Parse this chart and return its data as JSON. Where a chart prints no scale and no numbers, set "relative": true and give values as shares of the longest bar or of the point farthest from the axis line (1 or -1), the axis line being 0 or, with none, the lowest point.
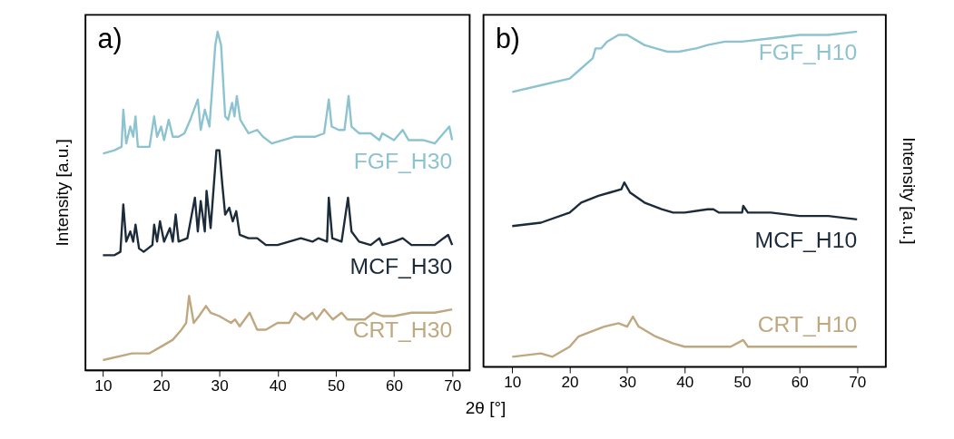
{
  "chart_data": [
    {
      "type": "line",
      "title": "a)",
      "xlabel": "2θ [°]",
      "ylabel": "Intensity [a.u.]",
      "relative": true,
      "xlim": [
        7,
        73
      ],
      "xticks": [
        10,
        20,
        30,
        40,
        50,
        60,
        70
      ],
      "series": [
        {
          "name": "FGF_H30",
          "color": "#8dc3d0",
          "x": [
            10,
            12,
            13.2,
            13.5,
            14,
            14.7,
            15.2,
            15.6,
            16,
            17,
            18,
            18.8,
            19.3,
            20,
            20.5,
            21.3,
            22,
            23,
            24,
            25,
            26.3,
            26.8,
            27.5,
            28.3,
            29.3,
            29.7,
            30.3,
            31,
            31.5,
            32.2,
            32.6,
            33,
            33.6,
            35,
            36.5,
            37.5,
            39,
            41,
            43,
            45,
            46.5,
            48,
            48.8,
            49.3,
            50.5,
            51.5,
            52.2,
            52.7,
            54,
            56,
            57.5,
            58,
            60,
            61.5,
            62.5,
            65,
            67,
            68.5,
            69.5,
            70
          ],
          "values": [
            0.64,
            0.65,
            0.66,
            0.77,
            0.67,
            0.72,
            0.69,
            0.75,
            0.66,
            0.66,
            0.66,
            0.75,
            0.69,
            0.72,
            0.68,
            0.74,
            0.69,
            0.69,
            0.7,
            0.74,
            0.8,
            0.71,
            0.77,
            0.72,
            0.96,
            1.0,
            0.96,
            0.75,
            0.74,
            0.79,
            0.75,
            0.81,
            0.74,
            0.7,
            0.71,
            0.69,
            0.67,
            0.68,
            0.69,
            0.69,
            0.69,
            0.7,
            0.8,
            0.72,
            0.71,
            0.71,
            0.81,
            0.72,
            0.7,
            0.7,
            0.68,
            0.7,
            0.68,
            0.71,
            0.68,
            0.68,
            0.67,
            0.7,
            0.72,
            0.68
          ]
        },
        {
          "name": "MCF_H30",
          "color": "#1c2b3a",
          "x": [
            10,
            12,
            13,
            13.5,
            14,
            14.7,
            15.2,
            15.6,
            16.2,
            17,
            18.5,
            18.8,
            19.3,
            19.8,
            20.5,
            21.5,
            22,
            22.5,
            23,
            24.5,
            25.8,
            26.3,
            26.8,
            27.5,
            27.8,
            28.5,
            29.5,
            30,
            30.5,
            31,
            31.7,
            32.3,
            32.9,
            33.5,
            35,
            36.5,
            38,
            40,
            42,
            44,
            46,
            47,
            48.5,
            48.8,
            49.4,
            51,
            52.1,
            52.7,
            54,
            56,
            57.5,
            58,
            60,
            61.5,
            63,
            65,
            67,
            68.5,
            69.3,
            70
          ],
          "values": [
            0.34,
            0.34,
            0.35,
            0.49,
            0.38,
            0.41,
            0.38,
            0.43,
            0.36,
            0.35,
            0.37,
            0.43,
            0.38,
            0.44,
            0.38,
            0.42,
            0.38,
            0.46,
            0.38,
            0.39,
            0.51,
            0.41,
            0.5,
            0.41,
            0.53,
            0.42,
            0.65,
            0.65,
            0.55,
            0.46,
            0.48,
            0.44,
            0.47,
            0.4,
            0.39,
            0.39,
            0.37,
            0.37,
            0.38,
            0.39,
            0.38,
            0.39,
            0.38,
            0.51,
            0.39,
            0.38,
            0.51,
            0.41,
            0.38,
            0.37,
            0.39,
            0.37,
            0.38,
            0.39,
            0.37,
            0.37,
            0.37,
            0.39,
            0.4,
            0.37
          ]
        },
        {
          "name": "CRT_H30",
          "color": "#bfa87f",
          "x": [
            10,
            15,
            18,
            20,
            22,
            23.5,
            24.3,
            24.8,
            25.6,
            26.5,
            27.7,
            28.5,
            30,
            32,
            32.7,
            33.5,
            35.2,
            36.5,
            38,
            40,
            42,
            43,
            44.5,
            46,
            46.7,
            48,
            49.5,
            51,
            52,
            55,
            56.5,
            58,
            60,
            63,
            67,
            70
          ],
          "values": [
            0.03,
            0.05,
            0.05,
            0.07,
            0.09,
            0.12,
            0.14,
            0.22,
            0.14,
            0.16,
            0.19,
            0.17,
            0.16,
            0.14,
            0.15,
            0.13,
            0.17,
            0.12,
            0.12,
            0.14,
            0.14,
            0.17,
            0.15,
            0.17,
            0.15,
            0.18,
            0.15,
            0.17,
            0.15,
            0.15,
            0.17,
            0.16,
            0.16,
            0.17,
            0.17,
            0.18
          ]
        }
      ]
    },
    {
      "type": "line",
      "title": "b)",
      "y2label": "Intensity [a.u.]",
      "relative": true,
      "xlim": [
        5,
        75
      ],
      "xticks": [
        10,
        20,
        30,
        40,
        50,
        60,
        70
      ],
      "series": [
        {
          "name": "FGF_H10",
          "color": "#8dc3d0",
          "x": [
            10,
            15,
            20,
            22,
            24,
            24.5,
            25.5,
            26.5,
            28.5,
            30,
            33,
            35,
            37,
            39,
            42,
            44,
            47,
            50,
            55,
            60,
            65,
            70
          ],
          "values": [
            0.82,
            0.84,
            0.86,
            0.89,
            0.92,
            0.95,
            0.95,
            0.97,
            0.99,
            0.99,
            0.96,
            0.95,
            0.94,
            0.94,
            0.95,
            0.96,
            0.97,
            0.97,
            0.98,
            0.99,
            0.99,
            1.0
          ]
        },
        {
          "name": "MCF_H10",
          "color": "#1c2b3a",
          "x": [
            10,
            15,
            20,
            22,
            25,
            27,
            29,
            29.5,
            30.5,
            33,
            36,
            38,
            40,
            44,
            45,
            46,
            50,
            50.2,
            51,
            55,
            60,
            65,
            70
          ],
          "values": [
            0.42,
            0.43,
            0.46,
            0.49,
            0.51,
            0.52,
            0.53,
            0.55,
            0.52,
            0.49,
            0.47,
            0.46,
            0.46,
            0.47,
            0.47,
            0.46,
            0.46,
            0.48,
            0.46,
            0.46,
            0.45,
            0.45,
            0.44
          ]
        },
        {
          "name": "CRT_H10",
          "color": "#bfa87f",
          "x": [
            10,
            15,
            17,
            20,
            21.5,
            23,
            26,
            28.5,
            30,
            31,
            32,
            35,
            38,
            40,
            45,
            48,
            50.2,
            51,
            55,
            60,
            64,
            70
          ],
          "values": [
            0.03,
            0.04,
            0.03,
            0.06,
            0.09,
            0.1,
            0.12,
            0.13,
            0.12,
            0.15,
            0.12,
            0.09,
            0.07,
            0.06,
            0.06,
            0.06,
            0.08,
            0.06,
            0.06,
            0.06,
            0.06,
            0.06
          ]
        }
      ]
    }
  ]
}
